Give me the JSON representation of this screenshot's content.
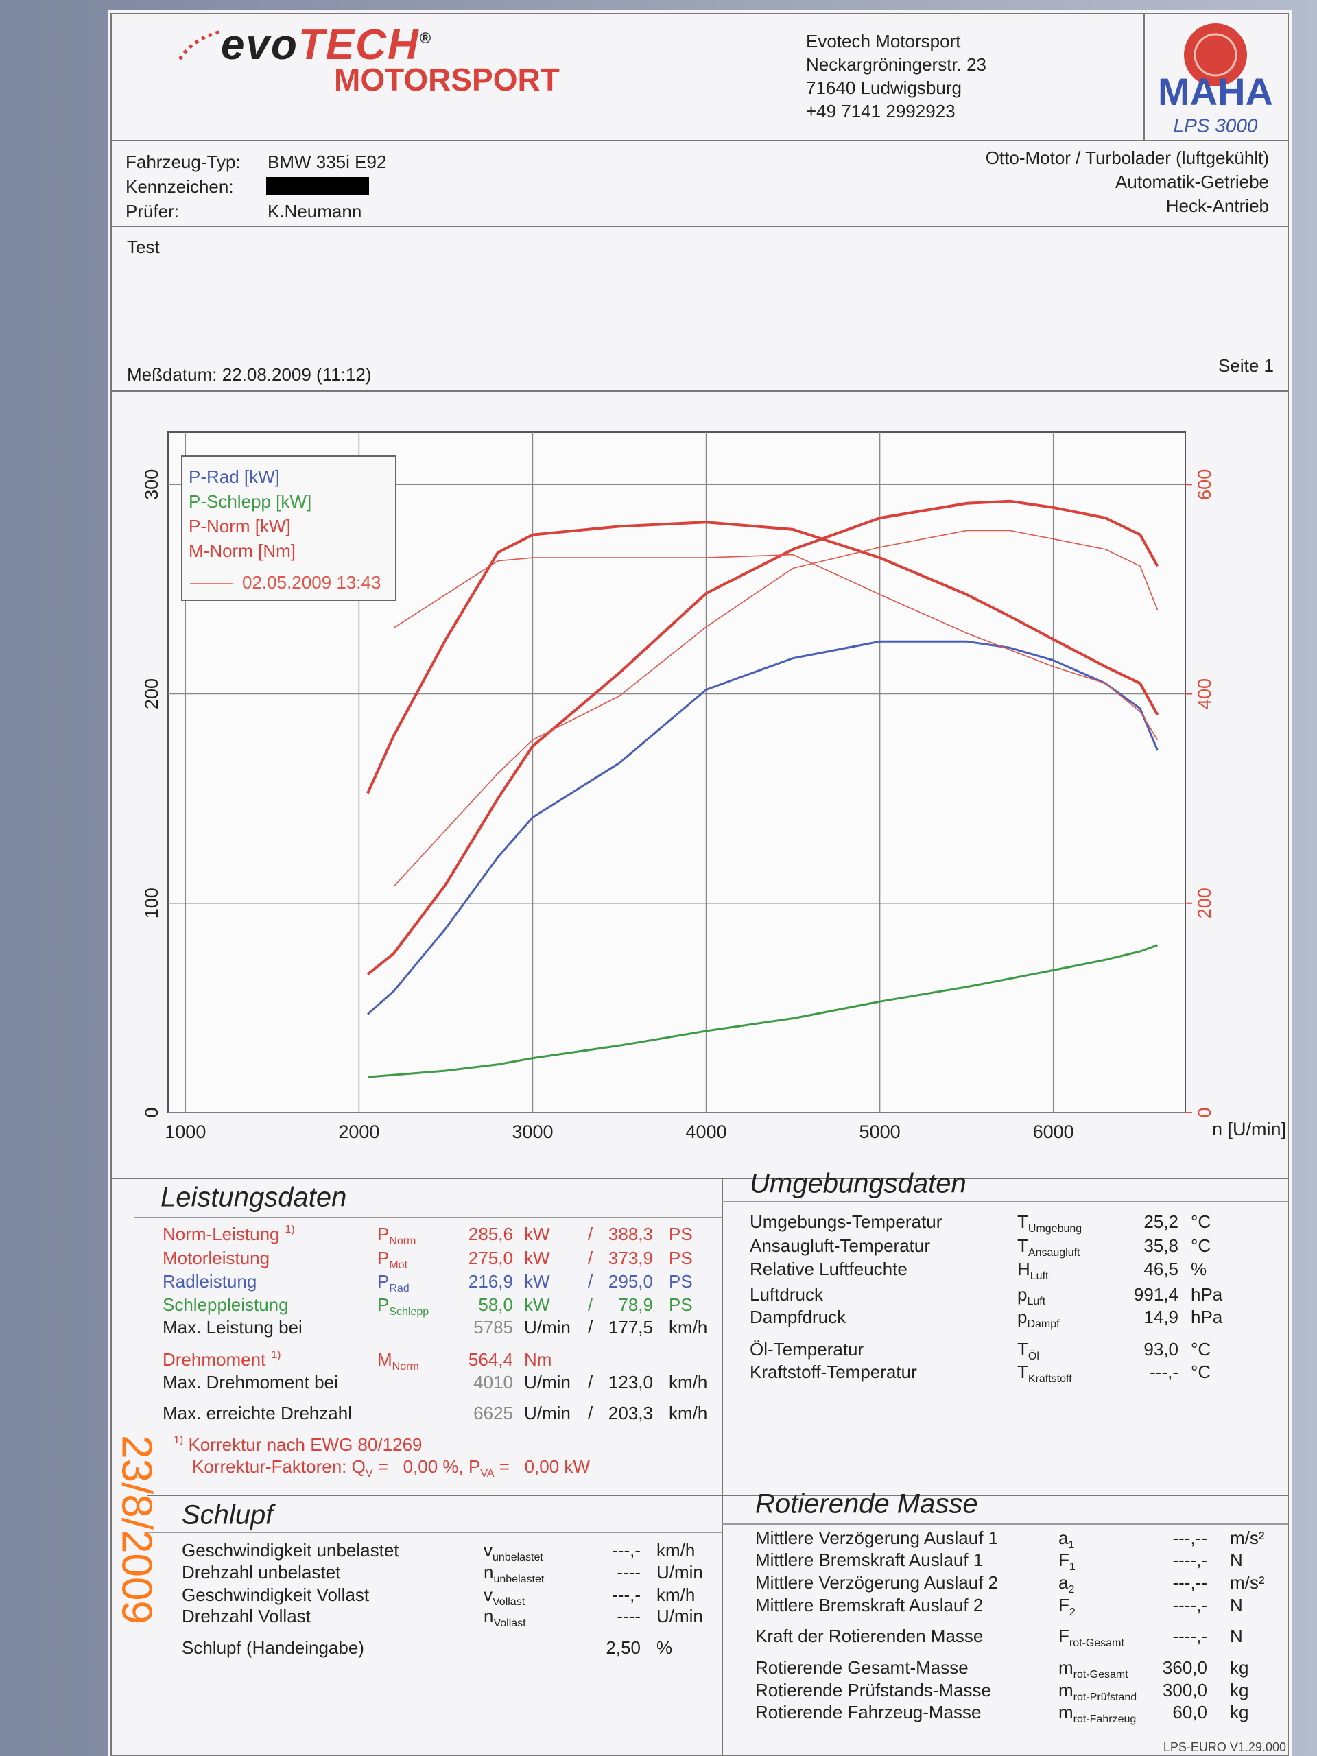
{
  "header": {
    "logo_prefix": "evo",
    "logo_main": "TECH",
    "logo_mark": "®",
    "logo_bottom": "MOTORSPORT",
    "address": [
      "Evotech Motorsport",
      "Neckargröningerstr. 23",
      "71640 Ludwigsburg",
      "+49 7141 2992923"
    ],
    "badge": "MAHA",
    "badge_model": "LPS 3000"
  },
  "vehicle": {
    "rows": [
      {
        "label": "Fahrzeug-Typ:",
        "value": "BMW 335i E92"
      },
      {
        "label": "Kennzeichen:"
      },
      {
        "label": "Prüfer:",
        "value": "K.Neumann"
      }
    ],
    "engine": [
      "Otto-Motor / Turbolader (luftgekühlt)",
      "Automatik-Getriebe",
      "Heck-Antrieb"
    ]
  },
  "test": {
    "title": "Test",
    "date": "Meßdatum: 22.08.2009 (11:12)",
    "page": "Seite 1"
  },
  "chart_data": {
    "type": "line",
    "x_label": "n [U/min]",
    "x": [
      2050,
      2200,
      2500,
      2800,
      3000,
      3500,
      4000,
      4500,
      5000,
      5500,
      5750,
      6000,
      6300,
      6500,
      6600
    ],
    "xlim": [
      900,
      6760
    ],
    "xticks": [
      1000,
      2000,
      3000,
      4000,
      5000,
      6000
    ],
    "ylim": [
      0,
      325
    ],
    "yticks": [
      0,
      100,
      200,
      300
    ],
    "y2lim": [
      0,
      650
    ],
    "y2ticks": [
      0,
      200,
      400,
      600
    ],
    "y2_color": "#d9503c",
    "grid": true,
    "legend": "upper left",
    "series": [
      {
        "name": "P-Rad [kW]",
        "color": "#4a5fb5",
        "line_width": 3,
        "values": [
          47,
          58,
          88,
          122,
          141,
          167,
          202,
          217,
          225,
          225,
          222,
          216,
          205,
          193,
          173
        ]
      },
      {
        "name": "P-Schlepp [kW]",
        "color": "#3f9a45",
        "line_width": 3,
        "values": [
          17,
          18,
          20,
          23,
          26,
          32,
          39,
          45,
          53,
          60,
          64,
          68,
          73,
          77,
          80
        ]
      },
      {
        "name": "P-Norm [kW]",
        "color": "#d9423a",
        "line_width": 4,
        "values": [
          66,
          76,
          109,
          150,
          175,
          210,
          248,
          269,
          284,
          291,
          292,
          289,
          284,
          276,
          261
        ]
      },
      {
        "name": "M-Norm [Nm]",
        "color": "#d9423a",
        "line_width": 4,
        "axis": "y2",
        "values": [
          305,
          360,
          452,
          535,
          552,
          560,
          564,
          557,
          530,
          495,
          474,
          452,
          426,
          410,
          380
        ]
      },
      {
        "name": "02.05.2009 13:43",
        "color": "#e0564a",
        "line_width": 1.6,
        "values": [
          null,
          108,
          135,
          162,
          178,
          199,
          232,
          260,
          270,
          278,
          278,
          274,
          269,
          261,
          240
        ]
      },
      {
        "color": "#e0564a",
        "line_width": 1.6,
        "axis": "y2",
        "values": [
          null,
          463,
          495,
          527,
          530,
          530,
          530,
          533,
          495,
          458,
          442,
          426,
          410,
          383,
          356
        ]
      }
    ]
  },
  "leistung": {
    "title": "Leistungsdaten",
    "rows": [
      {
        "label": "Norm-Leistung",
        "note": "1)",
        "symbol": "P",
        "sub": "Norm",
        "value": "285,6",
        "unit": "kW",
        "sep": "/",
        "value2": "388,3",
        "unit2": "PS",
        "color": "#d9423a"
      },
      {
        "label": "Motorleistung",
        "symbol": "P",
        "sub": "Mot",
        "value": "275,0",
        "unit": "kW",
        "sep": "/",
        "value2": "373,9",
        "unit2": "PS",
        "color": "#d9423a"
      },
      {
        "label": "Radleistung",
        "symbol": "P",
        "sub": "Rad",
        "value": "216,9",
        "unit": "kW",
        "sep": "/",
        "value2": "295,0",
        "unit2": "PS",
        "color": "#4a5fb5"
      },
      {
        "label": "Schleppleistung",
        "symbol": "P",
        "sub": "Schlepp",
        "value": "58,0",
        "unit": "kW",
        "sep": "/",
        "value2": "78,9",
        "unit2": "PS",
        "color": "#3f9a45"
      },
      {
        "label": "Max. Leistung bei",
        "value": "5785",
        "unit": "U/min",
        "sep": "/",
        "value2": "177,5",
        "unit2": "km/h",
        "color": "#222222",
        "value_color": "#8a8a8a"
      },
      {
        "label": "Drehmoment",
        "note": "1)",
        "symbol": "M",
        "sub": "Norm",
        "value": "564,4",
        "unit": "Nm",
        "color": "#d9423a"
      },
      {
        "label": "Max. Drehmoment bei",
        "value": "4010",
        "unit": "U/min",
        "sep": "/",
        "value2": "123,0",
        "unit2": "km/h",
        "color": "#222222",
        "value_color": "#8a8a8a"
      },
      {
        "label": "Max. erreichte Drehzahl",
        "value": "6625",
        "unit": "U/min",
        "sep": "/",
        "value2": "203,3",
        "unit2": "km/h",
        "color": "#222222",
        "value_color": "#8a8a8a"
      }
    ],
    "notes": [
      [
        {
          "sup": "1)"
        },
        {
          "text": " Korrektur nach EWG 80/1269"
        }
      ],
      [
        {
          "text": "Korrektur-Faktoren: Q"
        },
        {
          "sub": "V"
        },
        {
          "text": " =   0,00 %, P"
        },
        {
          "sub": "VA"
        },
        {
          "text": " =   0,00 kW"
        }
      ]
    ]
  },
  "umgebung": {
    "title": "Umgebungsdaten",
    "rows": [
      {
        "label": "Umgebungs-Temperatur",
        "symbol": "T",
        "sub": "Umgebung",
        "value": "25,2",
        "unit": "°C"
      },
      {
        "label": "Ansaugluft-Temperatur",
        "symbol": "T",
        "sub": "Ansaugluft",
        "value": "35,8",
        "unit": "°C"
      },
      {
        "label": "Relative Luftfeuchte",
        "symbol": "H",
        "sub": "Luft",
        "value": "46,5",
        "unit": "%"
      },
      {
        "label": "Luftdruck",
        "symbol": "p",
        "sub": "Luft",
        "value": "991,4",
        "unit": "hPa"
      },
      {
        "label": "Dampfdruck",
        "symbol": "p",
        "sub": "Dampf",
        "value": "14,9",
        "unit": "hPa"
      },
      {
        "label": "Öl-Temperatur",
        "symbol": "T",
        "sub": "Öl",
        "value": "93,0",
        "unit": "°C"
      },
      {
        "label": "Kraftstoff-Temperatur",
        "symbol": "T",
        "sub": "Kraftstoff",
        "value": "---,-",
        "unit": "°C"
      }
    ]
  },
  "schlupf": {
    "title": "Schlupf",
    "rows": [
      {
        "label": "Geschwindigkeit unbelastet",
        "symbol": "v",
        "sub": "unbelastet",
        "value": "---,-",
        "unit": "km/h"
      },
      {
        "label": "Drehzahl unbelastet",
        "symbol": "n",
        "sub": "unbelastet",
        "value": "----",
        "unit": "U/min"
      },
      {
        "label": "Geschwindigkeit Vollast",
        "symbol": "v",
        "sub": "Vollast",
        "value": "---,-",
        "unit": "km/h"
      },
      {
        "label": "Drehzahl Vollast",
        "symbol": "n",
        "sub": "Vollast",
        "value": "----",
        "unit": "U/min"
      },
      {
        "label": "Schlupf (Handeingabe)",
        "value": "2,50",
        "unit": "%"
      }
    ]
  },
  "masse": {
    "title": "Rotierende Masse",
    "rows": [
      {
        "label": "Mittlere Verzögerung Auslauf 1",
        "symbol": "a",
        "sub": "1",
        "value": "---,--",
        "unit": "m/s²"
      },
      {
        "label": "Mittlere Bremskraft Auslauf 1",
        "symbol": "F",
        "sub": "1",
        "value": "----,-",
        "unit": "N"
      },
      {
        "label": "Mittlere Verzögerung Auslauf 2",
        "symbol": "a",
        "sub": "2",
        "value": "---,--",
        "unit": "m/s²"
      },
      {
        "label": "Mittlere Bremskraft Auslauf 2",
        "symbol": "F",
        "sub": "2",
        "value": "----,-",
        "unit": "N"
      },
      {
        "label": "Kraft der Rotierenden Masse",
        "symbol": "F",
        "sub": "rot-Gesamt",
        "value": "----,-",
        "unit": "N"
      },
      {
        "label": "Rotierende Gesamt-Masse",
        "symbol": "m",
        "sub": "rot-Gesamt",
        "value": "360,0",
        "unit": "kg"
      },
      {
        "label": "Rotierende Prüfstands-Masse",
        "symbol": "m",
        "sub": "rot-Prüfstand",
        "value": "300,0",
        "unit": "kg"
      },
      {
        "label": "Rotierende Fahrzeug-Masse",
        "symbol": "m",
        "sub": "rot-Fahrzeug",
        "value": "60,0",
        "unit": "kg"
      }
    ]
  },
  "footer": "LPS-EURO V1.29.000",
  "stamp": "23/8/2009"
}
